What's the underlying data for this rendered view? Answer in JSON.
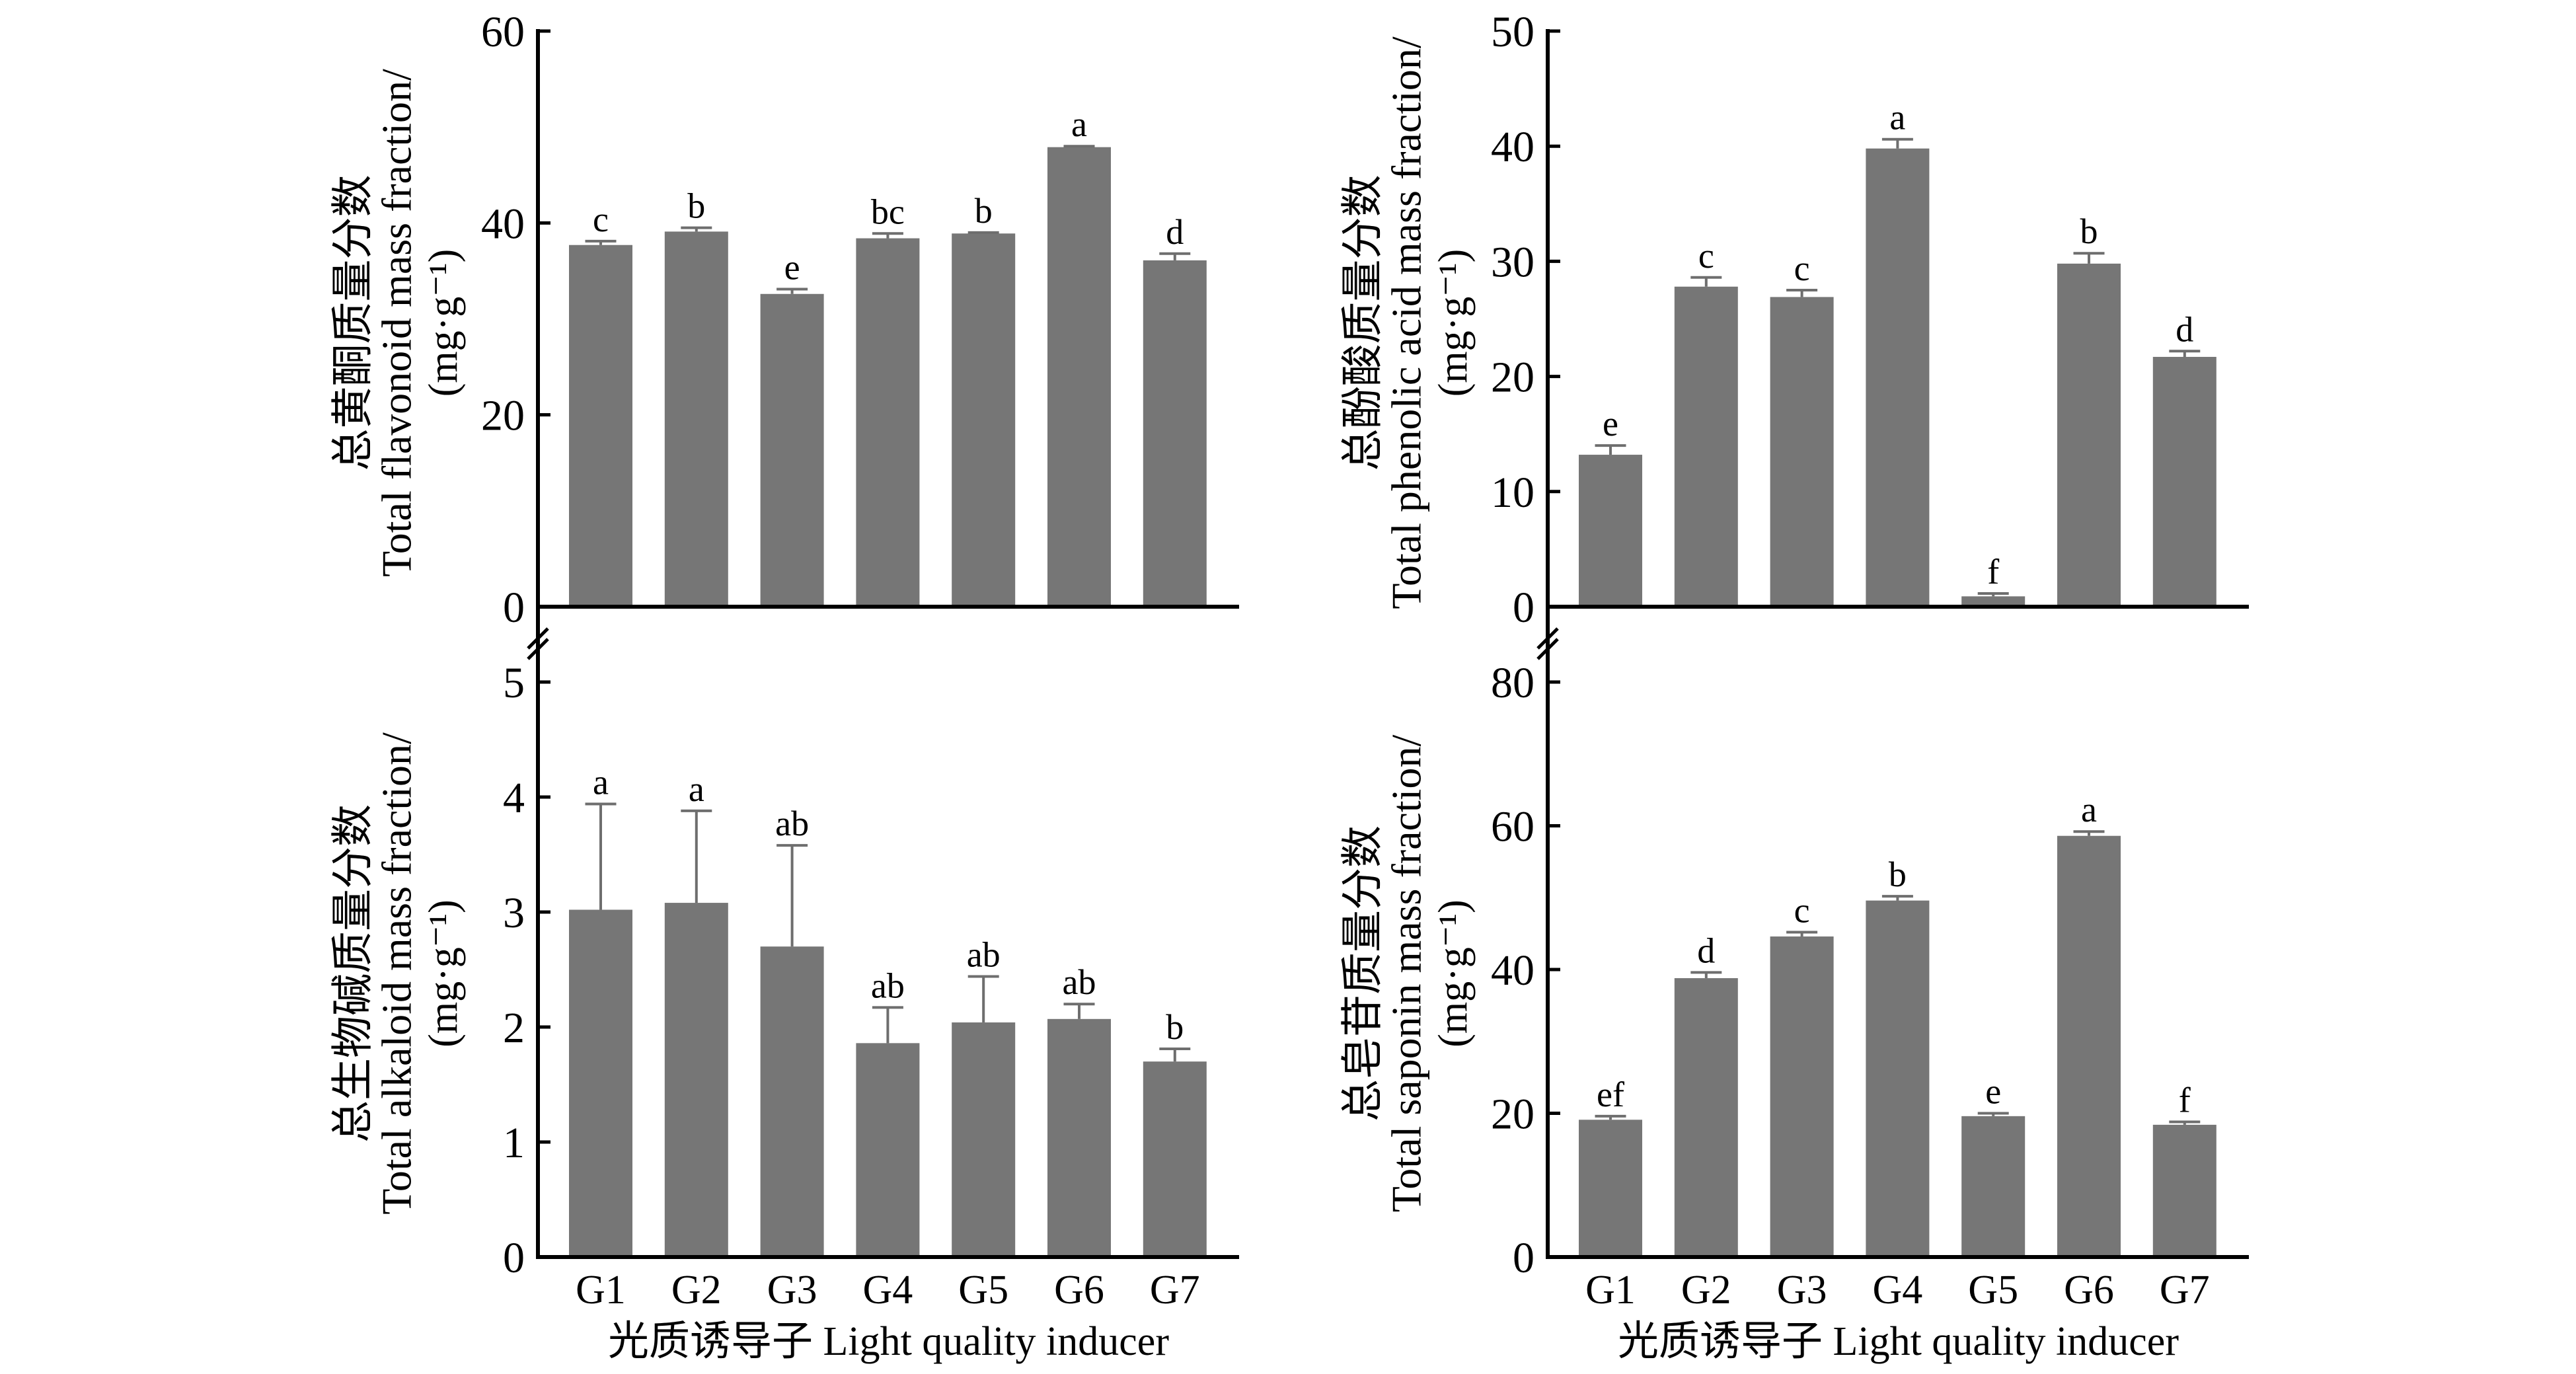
{
  "style": {
    "background": "#ffffff",
    "bar_color": "#767676",
    "error_bar_color": "#6e6e6e",
    "axis_color": "#000000"
  },
  "chart_data": [
    {
      "panel": "top-left",
      "type": "bar",
      "title": "",
      "ylabel_zh": "总黄酮质量分数",
      "ylabel_en": "Total flavonoid mass fraction/",
      "ylabel_unit": "(mg·g⁻¹)",
      "xlabel": "",
      "xtick_labels_visible": false,
      "categories": [
        "G1",
        "G2",
        "G3",
        "G4",
        "G5",
        "G6",
        "G7"
      ],
      "values": [
        37.7,
        39.1,
        32.6,
        38.4,
        38.9,
        47.9,
        36.1
      ],
      "errors": [
        0.4,
        0.4,
        0.5,
        0.5,
        0.1,
        0.1,
        0.7
      ],
      "significance": [
        "c",
        "b",
        "e",
        "bc",
        "b",
        "a",
        "d"
      ],
      "ylim": [
        0,
        60
      ],
      "yticks": [
        0,
        20,
        40,
        60
      ],
      "grid": false
    },
    {
      "panel": "top-right",
      "type": "bar",
      "title": "",
      "ylabel_zh": "总酚酸质量分数",
      "ylabel_en": "Total phenolic acid mass fraction/",
      "ylabel_unit": "(mg·g⁻¹)",
      "xlabel": "",
      "xtick_labels_visible": false,
      "categories": [
        "G1",
        "G2",
        "G3",
        "G4",
        "G5",
        "G6",
        "G7"
      ],
      "values": [
        13.2,
        27.8,
        26.9,
        39.8,
        0.9,
        29.8,
        21.7
      ],
      "errors": [
        0.8,
        0.8,
        0.6,
        0.8,
        0.25,
        0.9,
        0.5
      ],
      "significance": [
        "e",
        "c",
        "c",
        "a",
        "f",
        "b",
        "d"
      ],
      "ylim": [
        0,
        50
      ],
      "yticks": [
        0,
        10,
        20,
        30,
        40,
        50
      ],
      "grid": false
    },
    {
      "panel": "bottom-left",
      "type": "bar",
      "title": "",
      "ylabel_zh": "总生物碱质量分数",
      "ylabel_en": "Total alkaloid mass fraction/",
      "ylabel_unit": "(mg·g⁻¹)",
      "xlabel": "光质诱导子 Light quality inducer",
      "xtick_labels_visible": true,
      "categories": [
        "G1",
        "G2",
        "G3",
        "G4",
        "G5",
        "G6",
        "G7"
      ],
      "values": [
        3.02,
        3.08,
        2.7,
        1.86,
        2.04,
        2.07,
        1.7
      ],
      "errors": [
        0.92,
        0.8,
        0.88,
        0.31,
        0.4,
        0.13,
        0.11
      ],
      "significance": [
        "a",
        "a",
        "ab",
        "ab",
        "ab",
        "ab",
        "b"
      ],
      "ylim": [
        0,
        5
      ],
      "yticks": [
        0,
        1,
        2,
        3,
        4,
        5
      ],
      "grid": false
    },
    {
      "panel": "bottom-right",
      "type": "bar",
      "title": "",
      "ylabel_zh": "总皂苷质量分数",
      "ylabel_en": "Total saponin mass fraction/",
      "ylabel_unit": "(mg·g⁻¹)",
      "xlabel": "光质诱导子 Light quality inducer",
      "xtick_labels_visible": true,
      "categories": [
        "G1",
        "G2",
        "G3",
        "G4",
        "G5",
        "G6",
        "G7"
      ],
      "values": [
        19.1,
        38.8,
        44.6,
        49.6,
        19.6,
        58.6,
        18.4
      ],
      "errors": [
        0.5,
        0.8,
        0.6,
        0.6,
        0.4,
        0.6,
        0.4
      ],
      "significance": [
        "ef",
        "d",
        "c",
        "b",
        "e",
        "a",
        "f"
      ],
      "ylim": [
        0,
        80
      ],
      "yticks": [
        0,
        20,
        40,
        60,
        80
      ],
      "grid": false
    }
  ]
}
